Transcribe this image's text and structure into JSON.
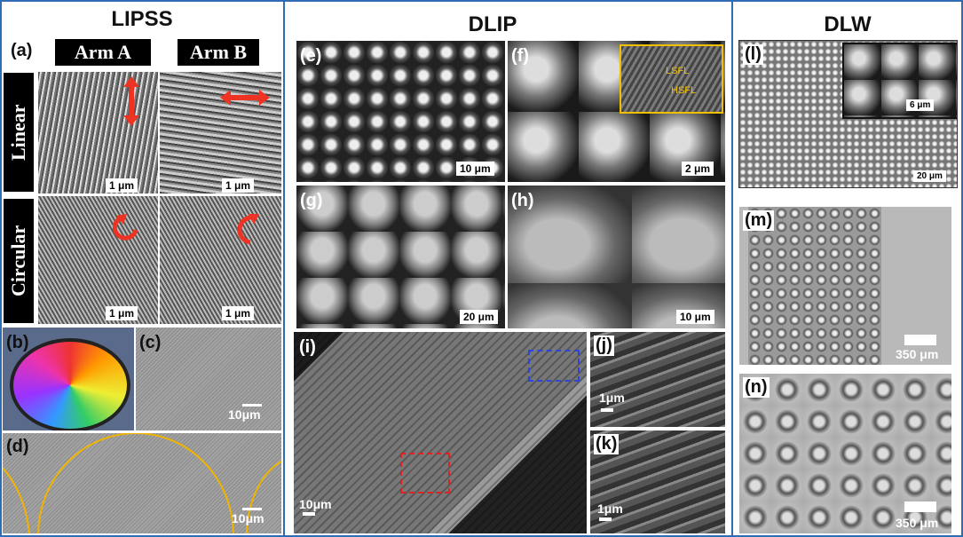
{
  "lipss": {
    "title": "LIPSS",
    "panel_a": "(a)",
    "arm_a": "Arm A",
    "arm_b": "Arm B",
    "row_linear": "Linear",
    "row_circular": "Circular",
    "scales_a": [
      "1 μm",
      "1 μm",
      "1 μm",
      "1 μm"
    ],
    "panel_b": "(b)",
    "panel_c": "(c)",
    "scale_c": "10μm",
    "panel_d": "(d)",
    "scale_d": "10μm"
  },
  "dlip": {
    "title": "DLIP",
    "panel_e": "(e)",
    "scale_e": "10 μm",
    "panel_f": "(f)",
    "scale_f": "2 μm",
    "lsfl": "LSFL",
    "hsfl": "HSFL",
    "panel_g": "(g)",
    "scale_g": "20 μm",
    "panel_h": "(h)",
    "scale_h": "10 μm",
    "panel_i": "(i)",
    "scale_i": "10μm",
    "panel_j": "(j)",
    "scale_j": "1μm",
    "panel_k": "(k)",
    "scale_k": "1μm"
  },
  "dlw": {
    "title": "DLW",
    "panel_l": "(l)",
    "scale_l_inset": "6 μm",
    "scale_l": "20 μm",
    "panel_m": "(m)",
    "scale_m": "350 μm",
    "panel_n": "(n)",
    "scale_n": "350 μm"
  }
}
